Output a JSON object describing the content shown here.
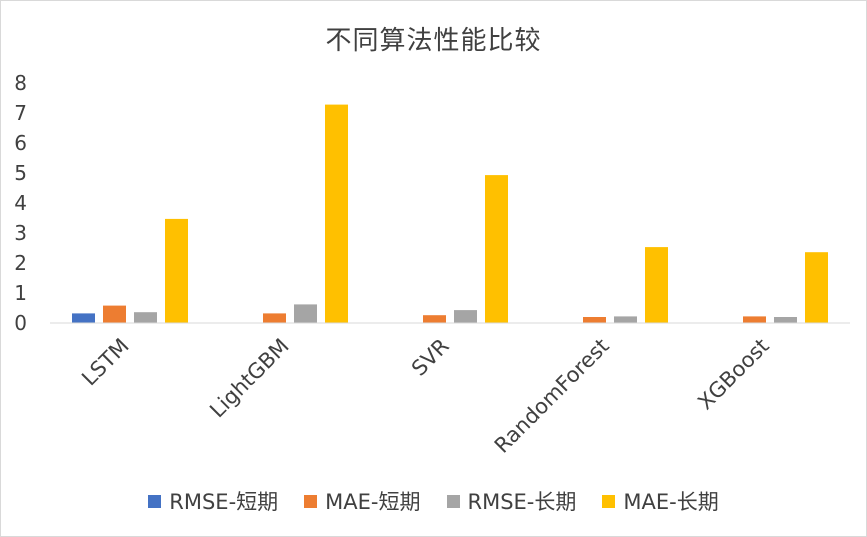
{
  "chart_data": {
    "type": "bar",
    "title": "不同算法性能比较",
    "categories": [
      "LSTM",
      "LightGBM",
      "SVR",
      "RandomForest",
      "XGBoost"
    ],
    "series": [
      {
        "name": "RMSE-短期",
        "color": "#4472C4",
        "values": [
          0.32,
          0,
          0,
          0,
          0
        ]
      },
      {
        "name": "MAE-短期",
        "color": "#ED7D31",
        "values": [
          0.58,
          0.32,
          0.26,
          0.2,
          0.22
        ]
      },
      {
        "name": "RMSE-长期",
        "color": "#A5A5A5",
        "values": [
          0.36,
          0.62,
          0.43,
          0.22,
          0.2
        ]
      },
      {
        "name": "MAE-长期",
        "color": "#FFC000",
        "values": [
          3.47,
          7.28,
          4.93,
          2.53,
          2.36
        ]
      }
    ],
    "yticks": [
      0,
      1,
      2,
      3,
      4,
      5,
      6,
      7,
      8
    ],
    "ylim": [
      0,
      8
    ],
    "xlabel": "",
    "ylabel": "",
    "grid": false,
    "legend_position": "bottom"
  }
}
